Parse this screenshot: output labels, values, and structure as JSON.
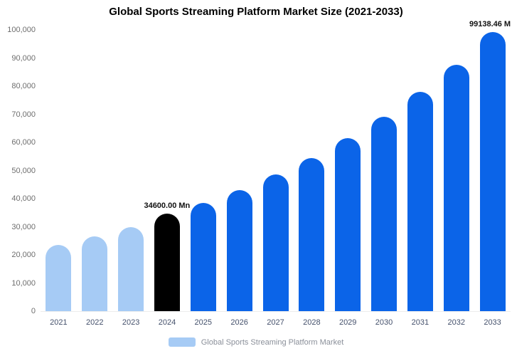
{
  "title": "Global Sports Streaming Platform Market Size (2021-2033)",
  "legend": {
    "label": "Global Sports Streaming Platform Market",
    "swatch_color": "#a6cbf5"
  },
  "colors": {
    "historical": "#a6cbf5",
    "base_year": "#000000",
    "forecast": "#0b64e8",
    "background": "#ffffff"
  },
  "chart_data": {
    "type": "bar",
    "title": "Global Sports Streaming Platform Market Size (2021-2033)",
    "xlabel": "",
    "ylabel": "",
    "ylim": [
      0,
      100000
    ],
    "ytick_step": 10000,
    "grid": false,
    "legend_position": "bottom",
    "categories": [
      "2021",
      "2022",
      "2023",
      "2024",
      "2025",
      "2026",
      "2027",
      "2028",
      "2029",
      "2030",
      "2031",
      "2032",
      "2033"
    ],
    "values": [
      23500,
      26700,
      29900,
      34600,
      38500,
      43000,
      48500,
      54500,
      61500,
      69000,
      78000,
      87500,
      99138.46
    ],
    "bar_colors": [
      "#a6cbf5",
      "#a6cbf5",
      "#a6cbf5",
      "#000000",
      "#0b64e8",
      "#0b64e8",
      "#0b64e8",
      "#0b64e8",
      "#0b64e8",
      "#0b64e8",
      "#0b64e8",
      "#0b64e8",
      "#0b64e8"
    ],
    "annotations": [
      {
        "category": "2024",
        "text": "34600.00 Mn"
      },
      {
        "category": "2033",
        "text": "99138.46 M"
      }
    ]
  }
}
